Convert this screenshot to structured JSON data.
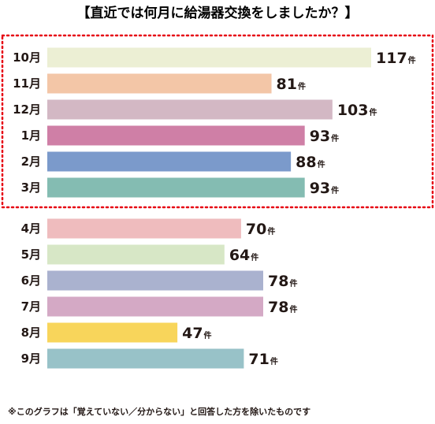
{
  "chart_data": {
    "type": "bar",
    "orientation": "horizontal",
    "title": "【直近では何月に給湯器交換をしましたか？】",
    "unit_label": "件",
    "categories": [
      "10月",
      "11月",
      "12月",
      "1月",
      "2月",
      "3月",
      "4月",
      "5月",
      "6月",
      "7月",
      "8月",
      "9月"
    ],
    "values": [
      117,
      81,
      103,
      93,
      88,
      93,
      70,
      64,
      78,
      78,
      47,
      71
    ],
    "bar_colors": [
      "#ecefd4",
      "#f3c6a7",
      "#d3b8c4",
      "#cf7fa6",
      "#7b9acb",
      "#84bcb2",
      "#efbcbe",
      "#d7e7c6",
      "#aab2cf",
      "#d4a9c5",
      "#f8d55b",
      "#98c2c8"
    ],
    "highlight": {
      "categories": [
        "10月",
        "11月",
        "12月",
        "1月",
        "2月",
        "3月"
      ],
      "border_color": "#e60012",
      "style": "dotted"
    },
    "footnote": "※このグラフは「覚えていない／分からない」と回答した方を除いたものです"
  }
}
